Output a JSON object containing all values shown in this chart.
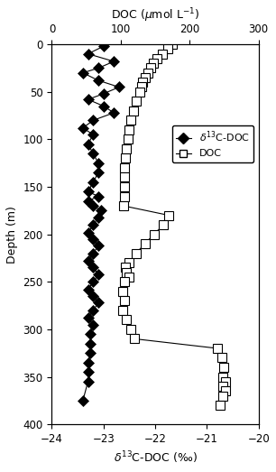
{
  "d13c_depth": [
    2,
    10,
    18,
    25,
    30,
    38,
    45,
    52,
    58,
    65,
    72,
    80,
    88,
    95,
    105,
    115,
    125,
    135,
    145,
    155,
    160,
    165,
    170,
    175,
    182,
    190,
    198,
    205,
    212,
    220,
    228,
    235,
    242,
    250,
    258,
    265,
    272,
    280,
    288,
    295,
    305,
    315,
    325,
    335,
    345,
    355,
    375
  ],
  "d13c_values": [
    -23.0,
    -23.3,
    -22.8,
    -23.1,
    -23.4,
    -23.1,
    -22.7,
    -23.0,
    -23.3,
    -23.0,
    -22.8,
    -23.2,
    -23.4,
    -23.2,
    -23.3,
    -23.2,
    -23.1,
    -23.1,
    -23.2,
    -23.3,
    -23.1,
    -23.3,
    -23.2,
    -23.05,
    -23.1,
    -23.2,
    -23.3,
    -23.2,
    -23.1,
    -23.2,
    -23.3,
    -23.2,
    -23.1,
    -23.2,
    -23.3,
    -23.2,
    -23.1,
    -23.2,
    -23.3,
    -23.2,
    -23.25,
    -23.25,
    -23.25,
    -23.3,
    -23.3,
    -23.3,
    -23.4
  ],
  "doc_depth": [
    0,
    5,
    10,
    15,
    20,
    25,
    30,
    35,
    40,
    45,
    50,
    60,
    70,
    80,
    90,
    100,
    110,
    120,
    130,
    140,
    150,
    160,
    170,
    180,
    190,
    200,
    210,
    220,
    230,
    235,
    240,
    245,
    250,
    260,
    270,
    280,
    290,
    300,
    310,
    320,
    330,
    340,
    350,
    355,
    360,
    365,
    370,
    380
  ],
  "doc_values": [
    175,
    168,
    160,
    152,
    147,
    143,
    139,
    135,
    132,
    130,
    127,
    122,
    118,
    115,
    112,
    110,
    108,
    107,
    106,
    105,
    105,
    105,
    104,
    170,
    162,
    148,
    135,
    122,
    112,
    107,
    108,
    112,
    105,
    103,
    105,
    103,
    108,
    115,
    120,
    240,
    247,
    250,
    248,
    252,
    248,
    252,
    248,
    244
  ],
  "xlim_d13c": [
    -24,
    -20
  ],
  "xlim_doc": [
    0,
    300
  ],
  "ylim": [
    0,
    400
  ],
  "yticks": [
    0,
    50,
    100,
    150,
    200,
    250,
    300,
    350,
    400
  ],
  "xticks_d13c": [
    -24,
    -23,
    -22,
    -21,
    -20
  ],
  "xticks_doc": [
    0,
    100,
    200,
    300
  ],
  "ylabel": "Depth (m)",
  "xlabel_bottom": "$\\delta^{13}$C-DOC (‰)",
  "xlabel_top": "DOC ($\\mu$mol L$^{-1}$)"
}
